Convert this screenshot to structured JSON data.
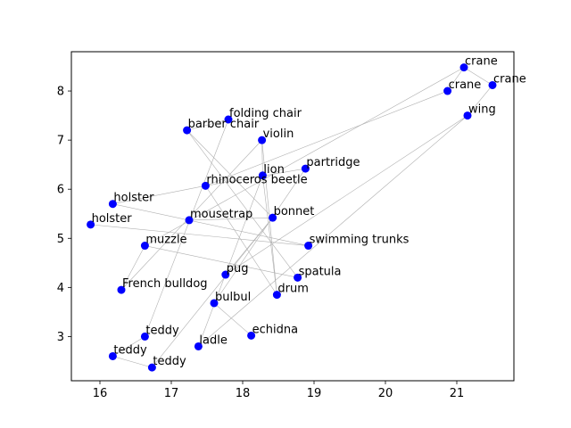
{
  "chart_data": {
    "type": "scatter",
    "title": "",
    "xlabel": "",
    "ylabel": "",
    "xlim": [
      15.6,
      21.8
    ],
    "ylim": [
      2.1,
      8.8
    ],
    "xticks": [
      16,
      17,
      18,
      19,
      20,
      21
    ],
    "yticks": [
      3,
      4,
      5,
      6,
      7,
      8
    ],
    "marker_color": "#0000ff",
    "edge_color": "#b0b0b0",
    "points": [
      {
        "label": "crane",
        "x": 21.1,
        "y": 8.48
      },
      {
        "label": "crane",
        "x": 21.5,
        "y": 8.12
      },
      {
        "label": "crane",
        "x": 20.87,
        "y": 8.0
      },
      {
        "label": "wing",
        "x": 21.15,
        "y": 7.5
      },
      {
        "label": "folding chair",
        "x": 17.8,
        "y": 7.42
      },
      {
        "label": "barber chair",
        "x": 17.22,
        "y": 7.2
      },
      {
        "label": "violin",
        "x": 18.27,
        "y": 7.0
      },
      {
        "label": "partridge",
        "x": 18.88,
        "y": 6.42
      },
      {
        "label": "lion",
        "x": 18.28,
        "y": 6.28
      },
      {
        "label": "rhinoceros beetle",
        "x": 17.48,
        "y": 6.07
      },
      {
        "label": "holster",
        "x": 16.18,
        "y": 5.7
      },
      {
        "label": "bonnet",
        "x": 18.42,
        "y": 5.42
      },
      {
        "label": "mousetrap",
        "x": 17.25,
        "y": 5.37
      },
      {
        "label": "holster",
        "x": 15.87,
        "y": 5.28
      },
      {
        "label": "swimming trunks",
        "x": 18.92,
        "y": 4.85
      },
      {
        "label": "muzzle",
        "x": 16.63,
        "y": 4.85
      },
      {
        "label": "pug",
        "x": 17.76,
        "y": 4.26
      },
      {
        "label": "spatula",
        "x": 18.77,
        "y": 4.2
      },
      {
        "label": "French bulldog",
        "x": 16.3,
        "y": 3.95
      },
      {
        "label": "drum",
        "x": 18.48,
        "y": 3.85
      },
      {
        "label": "bulbul",
        "x": 17.6,
        "y": 3.68
      },
      {
        "label": "echidna",
        "x": 18.12,
        "y": 3.02
      },
      {
        "label": "teddy",
        "x": 16.63,
        "y": 3.0
      },
      {
        "label": "ladle",
        "x": 17.38,
        "y": 2.8
      },
      {
        "label": "teddy",
        "x": 16.18,
        "y": 2.6
      },
      {
        "label": "teddy",
        "x": 16.73,
        "y": 2.37
      }
    ],
    "edges": [
      [
        2,
        0
      ],
      [
        0,
        1
      ],
      [
        2,
        9
      ],
      [
        0,
        15
      ],
      [
        1,
        3
      ],
      [
        3,
        23
      ],
      [
        3,
        16
      ],
      [
        4,
        5
      ],
      [
        4,
        22
      ],
      [
        5,
        11
      ],
      [
        5,
        17
      ],
      [
        6,
        8
      ],
      [
        6,
        19
      ],
      [
        6,
        18
      ],
      [
        7,
        9
      ],
      [
        7,
        20
      ],
      [
        8,
        19
      ],
      [
        8,
        23
      ],
      [
        9,
        10
      ],
      [
        9,
        19
      ],
      [
        13,
        14
      ],
      [
        12,
        11
      ],
      [
        14,
        10
      ],
      [
        15,
        18
      ],
      [
        15,
        17
      ],
      [
        16,
        11
      ],
      [
        20,
        21
      ],
      [
        11,
        25
      ],
      [
        22,
        24
      ],
      [
        24,
        25
      ]
    ]
  }
}
